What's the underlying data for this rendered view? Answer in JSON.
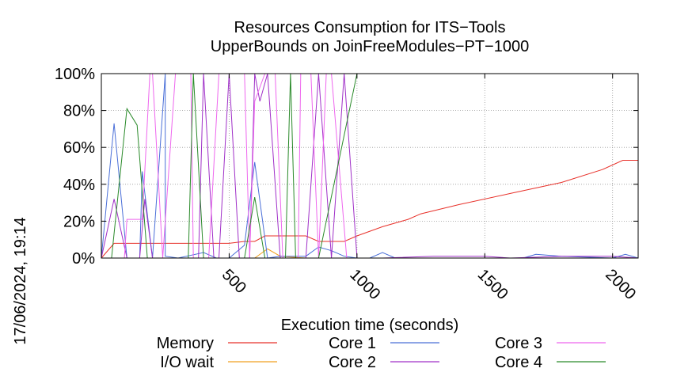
{
  "chart_data": {
    "type": "line",
    "title": "Resources Consumption for ITS−Tools",
    "subtitle": "UpperBounds on JoinFreeModules−PT−1000",
    "xlabel": "Execution time (seconds)",
    "ylabel": "",
    "side_label": "17/06/2024, 19:14",
    "xlim": [
      0,
      2100
    ],
    "ylim": [
      0,
      100
    ],
    "x_ticks": [
      500,
      1000,
      1500,
      2000
    ],
    "y_ticks": [
      0,
      20,
      40,
      60,
      80,
      100
    ],
    "y_tick_labels": [
      "0%",
      "20%",
      "40%",
      "60%",
      "80%",
      "100%"
    ],
    "grid": true,
    "legend_position": "bottom",
    "series": [
      {
        "name": "Memory",
        "color": "#e8312a",
        "points": [
          [
            0,
            0
          ],
          [
            50,
            8
          ],
          [
            150,
            8
          ],
          [
            300,
            8
          ],
          [
            400,
            8
          ],
          [
            500,
            8
          ],
          [
            560,
            9
          ],
          [
            600,
            9
          ],
          [
            640,
            12
          ],
          [
            760,
            12
          ],
          [
            800,
            12
          ],
          [
            850,
            9
          ],
          [
            950,
            9
          ],
          [
            1000,
            12
          ],
          [
            1100,
            17
          ],
          [
            1200,
            21
          ],
          [
            1250,
            24
          ],
          [
            1400,
            29
          ],
          [
            1600,
            35
          ],
          [
            1800,
            41
          ],
          [
            1960,
            48
          ],
          [
            2040,
            53
          ],
          [
            2100,
            53
          ]
        ]
      },
      {
        "name": "I/O wait",
        "color": "#f0a020",
        "points": [
          [
            0,
            0
          ],
          [
            600,
            0
          ],
          [
            650,
            5
          ],
          [
            700,
            1
          ],
          [
            800,
            0
          ],
          [
            1000,
            0
          ],
          [
            1050,
            0
          ],
          [
            1200,
            0
          ],
          [
            1400,
            0
          ],
          [
            1600,
            0
          ],
          [
            1800,
            0
          ],
          [
            2000,
            0
          ],
          [
            2100,
            0
          ]
        ]
      },
      {
        "name": "Core 1",
        "color": "#4a6fd8",
        "points": [
          [
            0,
            0
          ],
          [
            50,
            73
          ],
          [
            100,
            0
          ],
          [
            150,
            0
          ],
          [
            160,
            47
          ],
          [
            200,
            0
          ],
          [
            250,
            100
          ],
          [
            250,
            1
          ],
          [
            300,
            0
          ],
          [
            400,
            3
          ],
          [
            450,
            0
          ],
          [
            500,
            0
          ],
          [
            560,
            7
          ],
          [
            600,
            52
          ],
          [
            650,
            0
          ],
          [
            700,
            1
          ],
          [
            800,
            1
          ],
          [
            850,
            6
          ],
          [
            900,
            4
          ],
          [
            950,
            1
          ],
          [
            1000,
            0
          ],
          [
            1050,
            0
          ],
          [
            1100,
            3
          ],
          [
            1150,
            0
          ],
          [
            1400,
            0
          ],
          [
            1600,
            0
          ],
          [
            1650,
            0
          ],
          [
            1700,
            2
          ],
          [
            1800,
            1
          ],
          [
            2000,
            0
          ],
          [
            2050,
            2
          ],
          [
            2100,
            0
          ]
        ]
      },
      {
        "name": "Core 2",
        "color": "#a030c8",
        "points": [
          [
            0,
            0
          ],
          [
            50,
            32
          ],
          [
            100,
            0
          ],
          [
            150,
            0
          ],
          [
            170,
            32
          ],
          [
            200,
            0
          ],
          [
            300,
            0
          ],
          [
            380,
            0
          ],
          [
            400,
            100
          ],
          [
            440,
            0
          ],
          [
            460,
            0
          ],
          [
            500,
            100
          ],
          [
            540,
            0
          ],
          [
            580,
            0
          ],
          [
            600,
            100
          ],
          [
            620,
            85
          ],
          [
            650,
            100
          ],
          [
            700,
            0
          ],
          [
            800,
            0
          ],
          [
            850,
            100
          ],
          [
            900,
            0
          ],
          [
            950,
            100
          ],
          [
            1000,
            0
          ],
          [
            1100,
            0
          ],
          [
            1300,
            1
          ],
          [
            1500,
            1
          ],
          [
            1600,
            0
          ],
          [
            1800,
            1
          ],
          [
            2000,
            1
          ],
          [
            2100,
            0
          ]
        ]
      },
      {
        "name": "Core 3",
        "color": "#ee66ee",
        "points": [
          [
            0,
            0
          ],
          [
            90,
            0
          ],
          [
            100,
            21
          ],
          [
            150,
            21
          ],
          [
            160,
            21
          ],
          [
            190,
            100
          ],
          [
            200,
            100
          ],
          [
            240,
            0
          ],
          [
            290,
            100
          ],
          [
            350,
            100
          ],
          [
            360,
            0
          ],
          [
            420,
            0
          ],
          [
            460,
            100
          ],
          [
            560,
            100
          ],
          [
            580,
            0
          ],
          [
            600,
            85
          ],
          [
            640,
            100
          ],
          [
            680,
            100
          ],
          [
            710,
            0
          ],
          [
            770,
            0
          ],
          [
            780,
            100
          ],
          [
            820,
            100
          ],
          [
            850,
            0
          ],
          [
            880,
            100
          ],
          [
            900,
            100
          ],
          [
            960,
            0
          ],
          [
            1000,
            0
          ],
          [
            1200,
            0
          ],
          [
            1400,
            0
          ],
          [
            1600,
            0
          ],
          [
            1800,
            0
          ],
          [
            2000,
            0
          ],
          [
            2100,
            0
          ]
        ]
      },
      {
        "name": "Core 4",
        "color": "#2a8a2a",
        "points": [
          [
            0,
            0
          ],
          [
            40,
            0
          ],
          [
            100,
            81
          ],
          [
            140,
            72
          ],
          [
            180,
            0
          ],
          [
            250,
            0
          ],
          [
            300,
            0
          ],
          [
            340,
            0
          ],
          [
            360,
            100
          ],
          [
            400,
            0
          ],
          [
            500,
            0
          ],
          [
            560,
            0
          ],
          [
            600,
            33
          ],
          [
            640,
            0
          ],
          [
            680,
            0
          ],
          [
            720,
            0
          ],
          [
            740,
            100
          ],
          [
            760,
            0
          ],
          [
            800,
            0
          ],
          [
            850,
            0
          ],
          [
            1000,
            100
          ],
          [
            2100,
            100
          ]
        ]
      }
    ]
  }
}
